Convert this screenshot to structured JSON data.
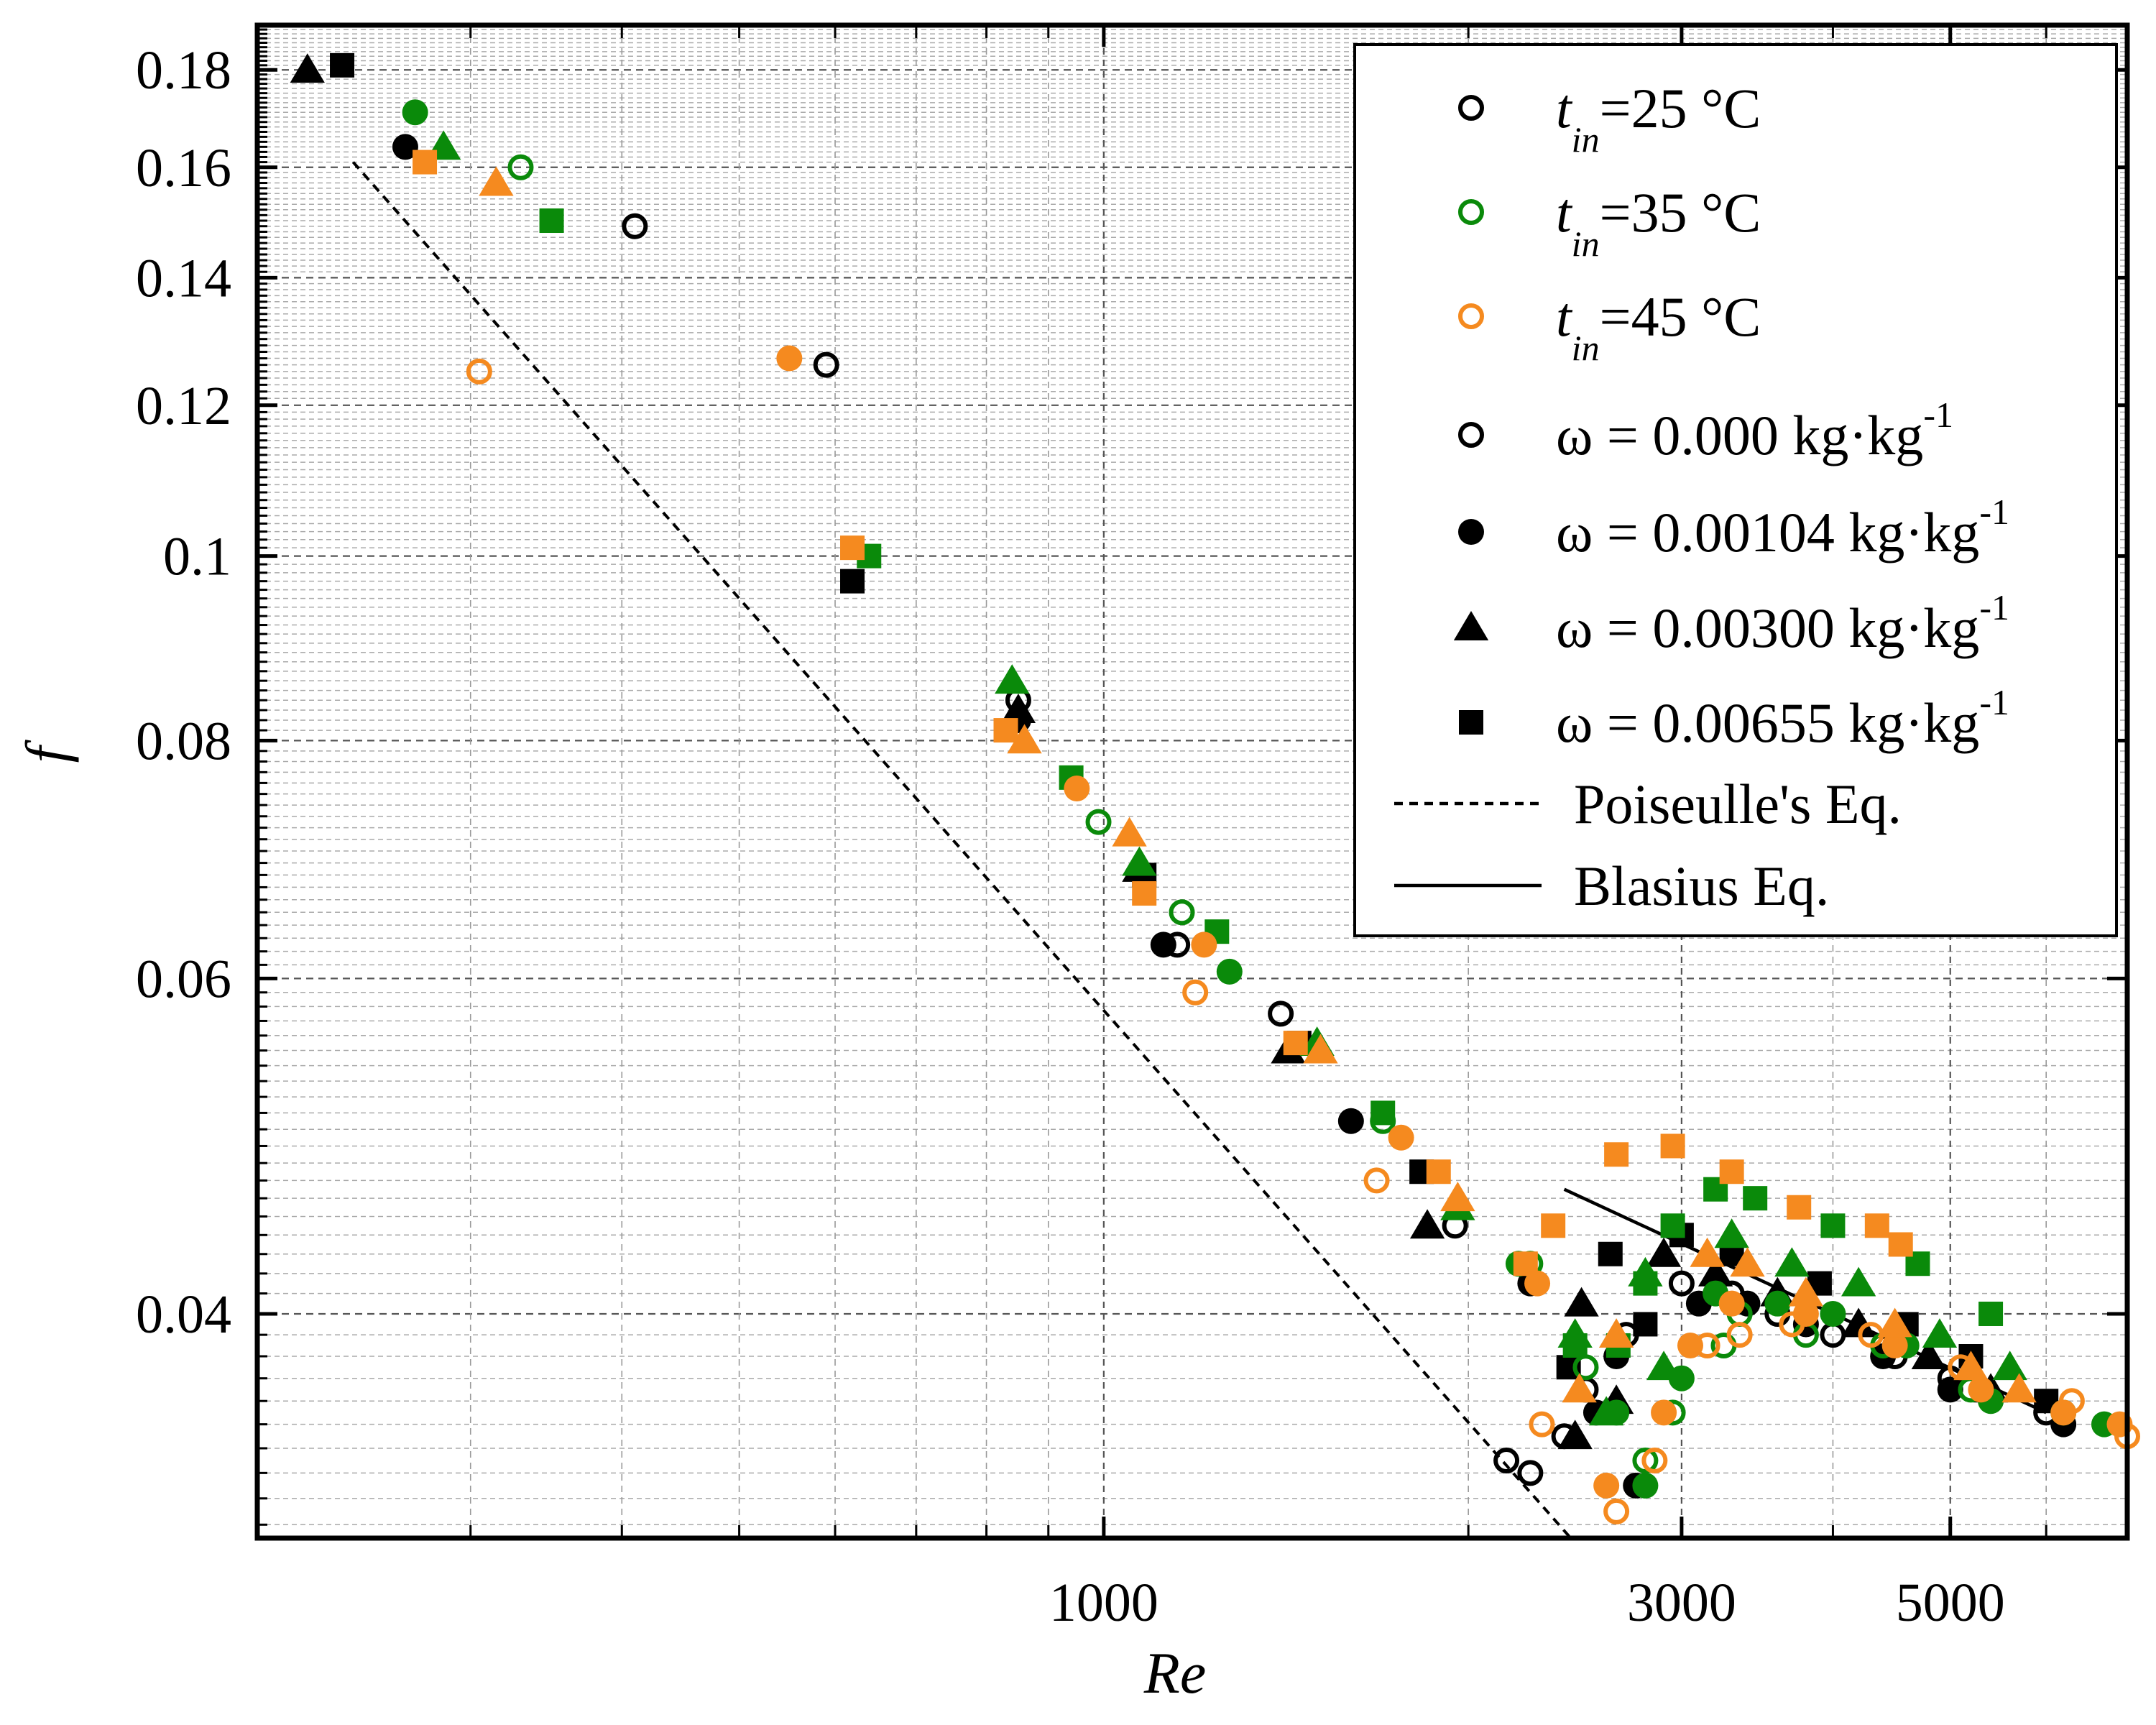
{
  "chart_data": {
    "type": "scatter",
    "title": "",
    "xlabel": "Re",
    "ylabel": "f",
    "xscale": "log",
    "yscale": "log",
    "xlim": [
      200,
      7000
    ],
    "ylim": [
      0.0305,
      0.19
    ],
    "xticks": [
      {
        "value": 1000,
        "label": "1000"
      },
      {
        "value": 3000,
        "label": "3000"
      },
      {
        "value": 5000,
        "label": "5000"
      }
    ],
    "yticks": [
      {
        "value": 0.18,
        "label": "0.18"
      },
      {
        "value": 0.16,
        "label": "0.16"
      },
      {
        "value": 0.14,
        "label": "0.14"
      },
      {
        "value": 0.12,
        "label": "0.12"
      },
      {
        "value": 0.1,
        "label": "0.1"
      },
      {
        "value": 0.08,
        "label": "0.08"
      },
      {
        "value": 0.06,
        "label": "0.06"
      },
      {
        "value": 0.04,
        "label": "0.04"
      }
    ],
    "grid": true,
    "legend_position": "top-right",
    "legend": [
      {
        "kind": "marker",
        "shape": "open-circle",
        "color": "#000000",
        "text": "=25 °C",
        "sym": "t",
        "sub": "in"
      },
      {
        "kind": "marker",
        "shape": "open-circle",
        "color": "#0a8a0a",
        "text": "=35 °C",
        "sym": "t",
        "sub": "in"
      },
      {
        "kind": "marker",
        "shape": "open-circle",
        "color": "#f58a1f",
        "text": "=45 °C",
        "sym": "t",
        "sub": "in"
      },
      {
        "kind": "marker",
        "shape": "open-circle",
        "color": "#000000",
        "text": "ω = 0.000 kg·kg",
        "sup": "-1"
      },
      {
        "kind": "marker",
        "shape": "circle",
        "color": "#000000",
        "text": "ω = 0.00104 kg·kg",
        "sup": "-1"
      },
      {
        "kind": "marker",
        "shape": "triangle",
        "color": "#000000",
        "text": "ω = 0.00300 kg·kg",
        "sup": "-1"
      },
      {
        "kind": "marker",
        "shape": "square",
        "color": "#000000",
        "text": "ω = 0.00655 kg·kg",
        "sup": "-1"
      },
      {
        "kind": "line",
        "dash": true,
        "text": "Poiseulle's Eq."
      },
      {
        "kind": "line",
        "dash": false,
        "text": "Blasius Eq."
      }
    ],
    "colors": {
      "t25": "#000000",
      "t35": "#0a8a0a",
      "t45": "#f58a1f"
    },
    "lines": [
      {
        "name": "Poiseulle's Eq.",
        "style": "dashed",
        "points": [
          [
            240,
            0.161
          ],
          [
            2430,
            0.0305
          ]
        ]
      },
      {
        "name": "Blasius Eq.",
        "style": "solid",
        "points": [
          [
            2400,
            0.0465
          ],
          [
            6000,
            0.0355
          ]
        ]
      }
    ],
    "series": [
      {
        "name": "t=25 °C, ω=0.000",
        "color": "#000000",
        "shape": "open-circle",
        "points": [
          [
            410,
            0.149
          ],
          [
            590,
            0.126
          ],
          [
            850,
            0.084
          ],
          [
            1150,
            0.0625
          ],
          [
            1400,
            0.0575
          ],
          [
            1950,
            0.0445
          ],
          [
            2150,
            0.0335
          ],
          [
            2250,
            0.033
          ],
          [
            2400,
            0.0345
          ],
          [
            2500,
            0.0365
          ],
          [
            2700,
            0.039
          ],
          [
            3000,
            0.0415
          ],
          [
            3300,
            0.041
          ],
          [
            3600,
            0.04
          ],
          [
            4000,
            0.039
          ],
          [
            4500,
            0.038
          ],
          [
            5000,
            0.037
          ],
          [
            6000,
            0.0355
          ]
        ]
      },
      {
        "name": "t=25 °C, ω=0.00104",
        "color": "#000000",
        "shape": "circle",
        "points": [
          [
            265,
            0.164
          ],
          [
            850,
            0.082
          ],
          [
            1120,
            0.0625
          ],
          [
            1600,
            0.0505
          ],
          [
            2250,
            0.0415
          ],
          [
            2550,
            0.0355
          ],
          [
            2750,
            0.0325
          ],
          [
            2650,
            0.038
          ],
          [
            3100,
            0.0405
          ],
          [
            3400,
            0.0405
          ],
          [
            3800,
            0.0395
          ],
          [
            4400,
            0.038
          ],
          [
            5000,
            0.0365
          ],
          [
            6200,
            0.035
          ]
        ]
      },
      {
        "name": "t=25 °C, ω=0.00300",
        "color": "#000000",
        "shape": "triangle",
        "points": [
          [
            220,
            0.18
          ],
          [
            850,
            0.083
          ],
          [
            1070,
            0.0685
          ],
          [
            1420,
            0.055
          ],
          [
            1850,
            0.0445
          ],
          [
            2450,
            0.0345
          ],
          [
            2650,
            0.036
          ],
          [
            2480,
            0.0405
          ],
          [
            2900,
            0.043
          ],
          [
            3200,
            0.042
          ],
          [
            3600,
            0.041
          ],
          [
            4200,
            0.0395
          ],
          [
            4800,
            0.038
          ],
          [
            5400,
            0.0365
          ]
        ]
      },
      {
        "name": "t=25 °C, ω=0.00655",
        "color": "#000000",
        "shape": "square",
        "points": [
          [
            235,
            0.181
          ],
          [
            620,
            0.097
          ],
          [
            1080,
            0.068
          ],
          [
            1450,
            0.0555
          ],
          [
            1830,
            0.0475
          ],
          [
            2420,
            0.0375
          ],
          [
            2800,
            0.0395
          ],
          [
            2620,
            0.043
          ],
          [
            3000,
            0.044
          ],
          [
            3300,
            0.043
          ],
          [
            3900,
            0.0415
          ],
          [
            4600,
            0.0395
          ],
          [
            5200,
            0.038
          ],
          [
            6000,
            0.036
          ]
        ]
      },
      {
        "name": "t=35 °C, ω=0.000",
        "color": "#0a8a0a",
        "shape": "open-circle",
        "points": [
          [
            330,
            0.16
          ],
          [
            990,
            0.0725
          ],
          [
            1160,
            0.065
          ],
          [
            1700,
            0.0505
          ],
          [
            2250,
            0.0425
          ],
          [
            2500,
            0.0375
          ],
          [
            2800,
            0.0335
          ],
          [
            2950,
            0.0355
          ],
          [
            3250,
            0.0385
          ],
          [
            3350,
            0.04
          ],
          [
            3800,
            0.039
          ],
          [
            4400,
            0.0385
          ],
          [
            5200,
            0.0365
          ]
        ]
      },
      {
        "name": "t=35 °C, ω=0.00104",
        "color": "#0a8a0a",
        "shape": "circle",
        "points": [
          [
            270,
            0.171
          ],
          [
            1270,
            0.0605
          ],
          [
            2200,
            0.0425
          ],
          [
            2650,
            0.0355
          ],
          [
            2800,
            0.0325
          ],
          [
            3000,
            0.037
          ],
          [
            3200,
            0.041
          ],
          [
            3600,
            0.0405
          ],
          [
            4000,
            0.04
          ],
          [
            4600,
            0.0385
          ],
          [
            5400,
            0.036
          ],
          [
            6200,
            0.0355
          ],
          [
            6700,
            0.035
          ]
        ]
      },
      {
        "name": "t=35 °C, ω=0.00300",
        "color": "#0a8a0a",
        "shape": "triangle",
        "points": [
          [
            285,
            0.164
          ],
          [
            840,
            0.086
          ],
          [
            1070,
            0.069
          ],
          [
            1500,
            0.0555
          ],
          [
            1960,
            0.0455
          ],
          [
            2450,
            0.039
          ],
          [
            2600,
            0.0355
          ],
          [
            2900,
            0.0375
          ],
          [
            2800,
            0.042
          ],
          [
            3300,
            0.044
          ],
          [
            3700,
            0.0425
          ],
          [
            4200,
            0.0415
          ],
          [
            4900,
            0.039
          ],
          [
            5600,
            0.0375
          ]
        ]
      },
      {
        "name": "t=35 °C, ω=0.00655",
        "color": "#0a8a0a",
        "shape": "square",
        "points": [
          [
            350,
            0.15
          ],
          [
            640,
            0.1
          ],
          [
            940,
            0.0765
          ],
          [
            1240,
            0.0635
          ],
          [
            1700,
            0.051
          ],
          [
            2450,
            0.0385
          ],
          [
            2660,
            0.0385
          ],
          [
            2800,
            0.0415
          ],
          [
            2950,
            0.0445
          ],
          [
            3200,
            0.0465
          ],
          [
            3450,
            0.046
          ],
          [
            4000,
            0.0445
          ],
          [
            4700,
            0.0425
          ],
          [
            5400,
            0.04
          ]
        ]
      },
      {
        "name": "t=45 °C, ω=0.000",
        "color": "#f58a1f",
        "shape": "open-circle",
        "points": [
          [
            305,
            0.125
          ],
          [
            1190,
            0.059
          ],
          [
            1680,
            0.047
          ],
          [
            2300,
            0.035
          ],
          [
            2650,
            0.0315
          ],
          [
            2850,
            0.0335
          ],
          [
            3150,
            0.0385
          ],
          [
            3350,
            0.039
          ],
          [
            3700,
            0.0395
          ],
          [
            4300,
            0.039
          ],
          [
            5100,
            0.0375
          ],
          [
            6300,
            0.036
          ],
          [
            7000,
            0.0345
          ]
        ]
      },
      {
        "name": "t=45 °C, ω=0.00104",
        "color": "#f58a1f",
        "shape": "circle",
        "points": [
          [
            550,
            0.127
          ],
          [
            950,
            0.0755
          ],
          [
            1210,
            0.0625
          ],
          [
            1760,
            0.0495
          ],
          [
            2280,
            0.0415
          ],
          [
            2600,
            0.0325
          ],
          [
            2900,
            0.0355
          ],
          [
            3050,
            0.0385
          ],
          [
            3300,
            0.0405
          ],
          [
            3800,
            0.04
          ],
          [
            4500,
            0.0385
          ],
          [
            5300,
            0.0365
          ],
          [
            6200,
            0.0355
          ],
          [
            6900,
            0.035
          ]
        ]
      },
      {
        "name": "t=45 °C, ω=0.00300",
        "color": "#f58a1f",
        "shape": "triangle",
        "points": [
          [
            315,
            0.157
          ],
          [
            860,
            0.08
          ],
          [
            1050,
            0.0715
          ],
          [
            1510,
            0.055
          ],
          [
            1960,
            0.046
          ],
          [
            2470,
            0.0365
          ],
          [
            2650,
            0.039
          ],
          [
            3150,
            0.043
          ],
          [
            3400,
            0.0425
          ],
          [
            3800,
            0.041
          ],
          [
            4500,
            0.0395
          ],
          [
            5200,
            0.0375
          ],
          [
            5700,
            0.0365
          ]
        ]
      },
      {
        "name": "t=45 °C, ω=0.00655",
        "color": "#f58a1f",
        "shape": "square",
        "points": [
          [
            275,
            0.161
          ],
          [
            620,
            0.101
          ],
          [
            830,
            0.081
          ],
          [
            1080,
            0.0665
          ],
          [
            1440,
            0.0555
          ],
          [
            1890,
            0.0475
          ],
          [
            2230,
            0.0425
          ],
          [
            2350,
            0.0445
          ],
          [
            2650,
            0.0485
          ],
          [
            2950,
            0.049
          ],
          [
            3300,
            0.0475
          ],
          [
            3750,
            0.0455
          ],
          [
            4350,
            0.0445
          ],
          [
            4550,
            0.0435
          ]
        ]
      }
    ]
  }
}
